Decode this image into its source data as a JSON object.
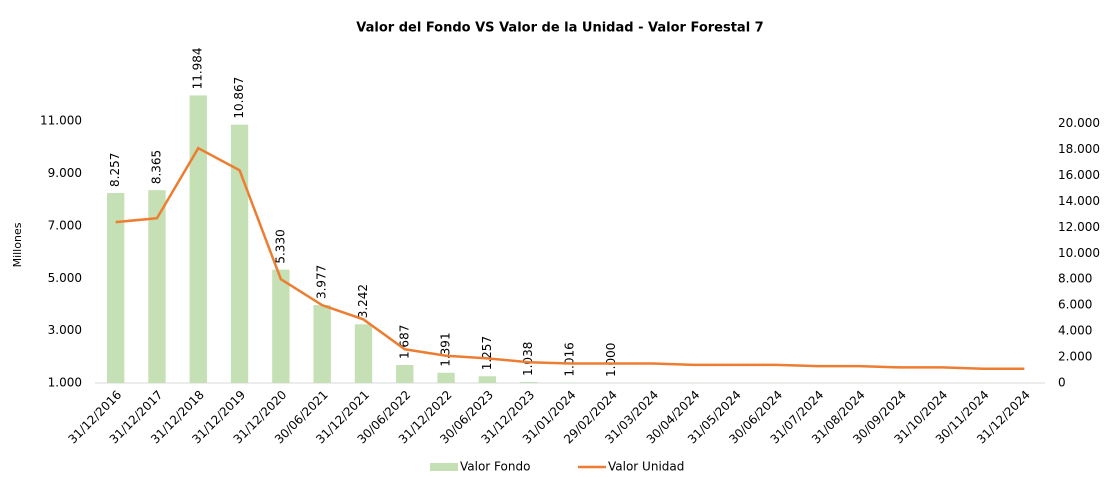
{
  "chart_data": {
    "type": "bar_line",
    "title": "Valor del Fondo VS  Valor de la Unidad - Valor Forestal 7",
    "y_label": "Millones",
    "categories": [
      "31/12/2016",
      "31/12/2017",
      "31/12/2018",
      "31/12/2019",
      "31/12/2020",
      "30/06/2021",
      "31/12/2021",
      "30/06/2022",
      "31/12/2022",
      "30/06/2023",
      "31/12/2023",
      "31/01/2024",
      "29/02/2024",
      "31/03/2024",
      "30/04/2024",
      "31/05/2024",
      "30/06/2024",
      "31/07/2024",
      "31/08/2024",
      "30/09/2024",
      "31/10/2024",
      "30/11/2024",
      "31/12/2024"
    ],
    "series": [
      {
        "name": "Valor Fondo",
        "type": "bar",
        "color": "#c5e0b4",
        "values": [
          8257,
          8365,
          11984,
          10867,
          5330,
          3977,
          3242,
          1687,
          1391,
          1257,
          1038,
          1016,
          1000,
          1010,
          1010,
          1010,
          1010,
          1010,
          1010,
          1010,
          1010,
          1010,
          1010
        ],
        "value_labels": [
          "8.257",
          "8.365",
          "11.984",
          "10.867",
          "5.330",
          "3.977",
          "3.242",
          "1.687",
          "1.391",
          "1.257",
          "1.038",
          "1.016",
          "1.000",
          null,
          null,
          null,
          null,
          null,
          null,
          null,
          null,
          null,
          null
        ]
      },
      {
        "name": "Valor Unidad",
        "type": "line",
        "color": "#ed7d31",
        "axis": "y2",
        "values": [
          12400,
          12700,
          18100,
          16400,
          8000,
          6000,
          4900,
          2600,
          2100,
          1900,
          1600,
          1500,
          1500,
          1500,
          1400,
          1400,
          1400,
          1300,
          1300,
          1200,
          1200,
          1100,
          1100
        ]
      }
    ],
    "ylim": [
      1000,
      12000
    ],
    "yticks": [
      {
        "value": 1000,
        "label": "1.000"
      },
      {
        "value": 3000,
        "label": "3.000"
      },
      {
        "value": 5000,
        "label": "5.000"
      },
      {
        "value": 7000,
        "label": "7.000"
      },
      {
        "value": 9000,
        "label": "9.000"
      },
      {
        "value": 11000,
        "label": "11.000"
      }
    ],
    "y2lim": [
      0,
      22200
    ],
    "y2ticks": [
      0,
      {
        "value": 2000,
        "label": "2.000"
      },
      {
        "value": 4000,
        "label": "4.000"
      },
      {
        "value": 6000,
        "label": "6.000"
      },
      {
        "value": 8000,
        "label": "8.000"
      },
      {
        "value": 10000,
        "label": "10.000"
      },
      {
        "value": 12000,
        "label": "12.000"
      },
      {
        "value": 14000,
        "label": "14.000"
      },
      {
        "value": 16000,
        "label": "16.000"
      },
      {
        "value": 18000,
        "label": "18.000"
      },
      {
        "value": 20000,
        "label": "20.000"
      }
    ],
    "legend": "bottom"
  }
}
